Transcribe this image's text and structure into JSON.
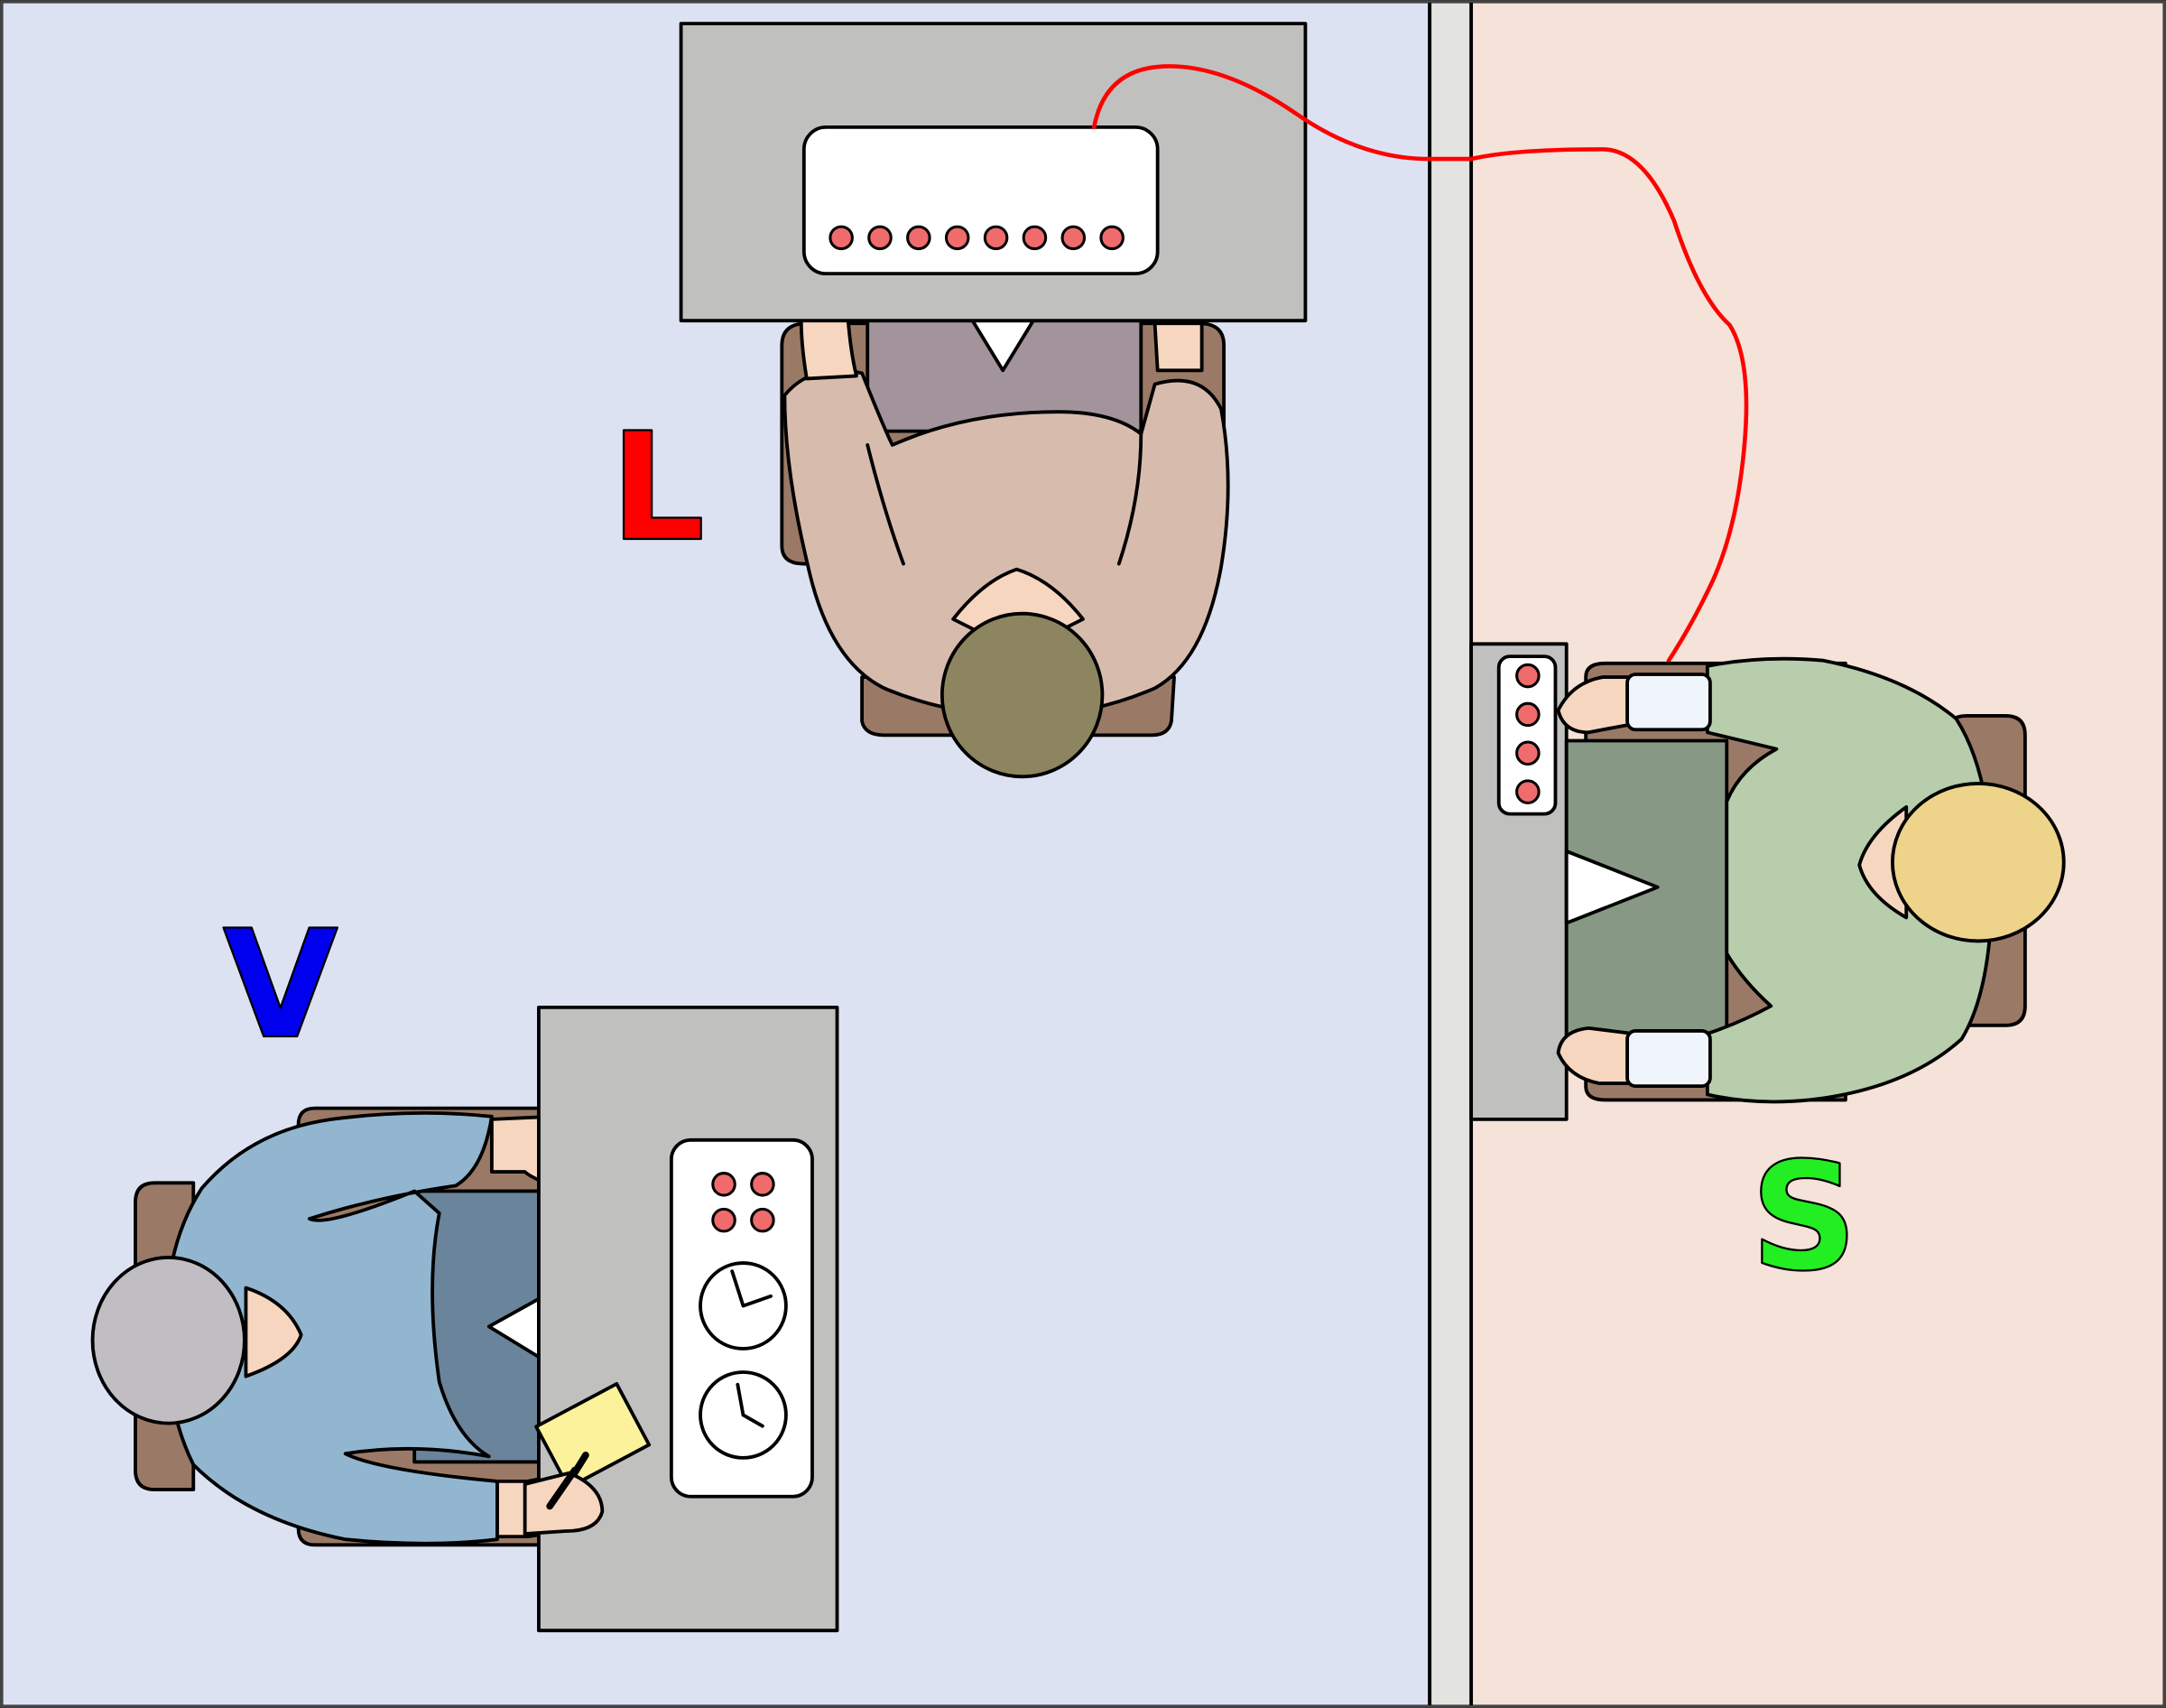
{
  "labels": {
    "learner": "L",
    "experimenter": "V",
    "subject": "S"
  },
  "colors": {
    "left_room": "#dde2f3",
    "right_room": "#f5e2d8",
    "wall": "#e3e3df",
    "desk": "#c0c1bf",
    "panel": "#ffffff",
    "button": "#f06b6b",
    "wire": "#ff0000",
    "label_L": "#ff0000",
    "label_V": "#0000ee",
    "label_S": "#22ee22",
    "chair": "#9a7a66",
    "learner_shirt": "#d7bcad",
    "learner_pants": "#a3949c",
    "learner_hair": "#8c8560",
    "experimenter_shirt": "#93b6d0",
    "experimenter_pants": "#6a849b",
    "experimenter_hair": "#c0bec3",
    "subject_shirt": "#b7cdab",
    "subject_pants": "#879985",
    "subject_hair": "#eed48a",
    "skin": "#f6d6bf",
    "notepad": "#fbf29b"
  },
  "icons": {
    "clock": "clock-icon",
    "notepad": "notepad-icon",
    "pencil": "pencil-icon"
  }
}
